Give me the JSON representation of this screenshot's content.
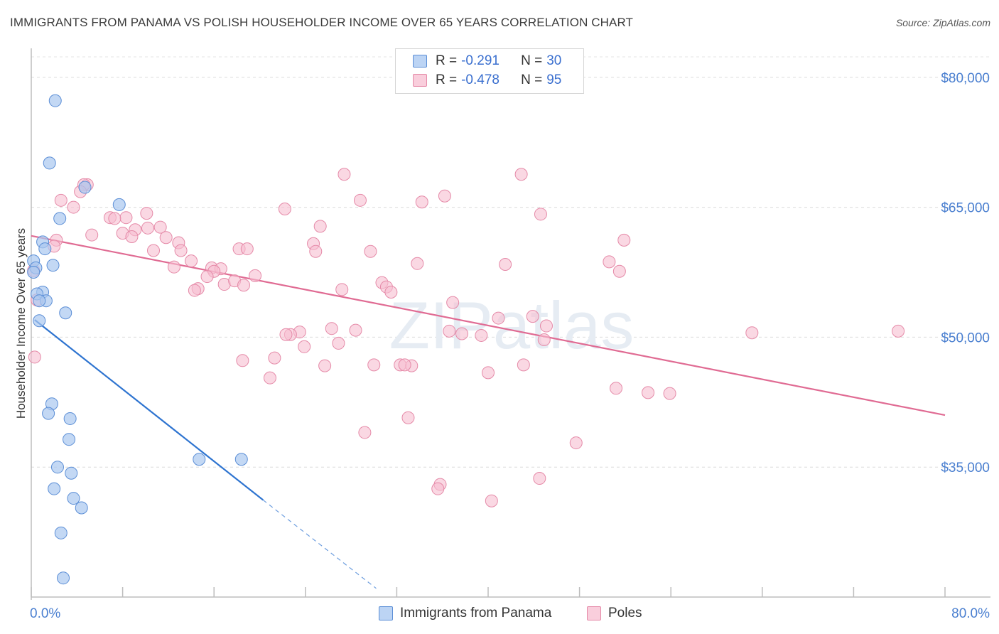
{
  "title": "IMMIGRANTS FROM PANAMA VS POLISH HOUSEHOLDER INCOME OVER 65 YEARS CORRELATION CHART",
  "source": "Source: ZipAtlas.com",
  "watermark": "ZIPatlas",
  "legend": {
    "row1": {
      "r_label": "R =",
      "r_value": "-0.291",
      "n_label": "N =",
      "n_value": "30"
    },
    "row2": {
      "r_label": "R =",
      "r_value": "-0.478",
      "n_label": "N =",
      "n_value": "95"
    }
  },
  "bottom_legend": {
    "s1": "Immigrants from Panama",
    "s2": "Poles"
  },
  "colors": {
    "blue_fill": "#a9c8f0",
    "blue_stroke": "#5b8ed6",
    "blue_line": "#2e74d0",
    "pink_fill": "#f7bed0",
    "pink_stroke": "#e58aa8",
    "pink_line": "#e06b93",
    "axis_text": "#4a7fd0"
  },
  "chart_data": {
    "type": "scatter",
    "title": "IMMIGRANTS FROM PANAMA VS POLISH HOUSEHOLDER INCOME OVER 65 YEARS CORRELATION CHART",
    "xlabel": "",
    "ylabel": "Householder Income Over 65 years",
    "xlim": [
      0,
      80
    ],
    "ylim": [
      20000,
      84000
    ],
    "x_tick_labels": [
      "0.0%",
      "80.0%"
    ],
    "y_ticks": [
      35000,
      50000,
      65000,
      80000
    ],
    "y_tick_labels": [
      "$35,000",
      "$50,000",
      "$65,000",
      "$80,000"
    ],
    "grid": true,
    "series": [
      {
        "name": "Immigrants from Panama",
        "color": "#a9c8f0",
        "points": [
          [
            2.1,
            77300
          ],
          [
            1.6,
            70100
          ],
          [
            4.7,
            67300
          ],
          [
            7.7,
            65300
          ],
          [
            2.5,
            63700
          ],
          [
            1.0,
            61000
          ],
          [
            1.2,
            60200
          ],
          [
            0.2,
            58800
          ],
          [
            0.4,
            58000
          ],
          [
            1.9,
            58300
          ],
          [
            0.2,
            57500
          ],
          [
            1.0,
            55200
          ],
          [
            0.5,
            55000
          ],
          [
            1.3,
            54200
          ],
          [
            0.7,
            54200
          ],
          [
            3.0,
            52800
          ],
          [
            0.7,
            51900
          ],
          [
            1.8,
            42300
          ],
          [
            1.5,
            41200
          ],
          [
            3.4,
            40600
          ],
          [
            3.3,
            38200
          ],
          [
            14.7,
            35900
          ],
          [
            18.4,
            35900
          ],
          [
            2.3,
            35000
          ],
          [
            3.5,
            34300
          ],
          [
            2.0,
            32500
          ],
          [
            3.7,
            31400
          ],
          [
            4.4,
            30300
          ],
          [
            2.6,
            27400
          ],
          [
            2.8,
            22200
          ]
        ],
        "trend": {
          "x0": 0.3,
          "y0": 52000,
          "x1": 20.3,
          "y1": 31200,
          "dashed_to_x": 30.2,
          "dashed_to_y": 21000
        }
      },
      {
        "name": "Poles",
        "color": "#f7bed0",
        "points": [
          [
            4.9,
            67600
          ],
          [
            4.6,
            67600
          ],
          [
            4.3,
            66800
          ],
          [
            2.6,
            65800
          ],
          [
            3.7,
            65000
          ],
          [
            6.9,
            63800
          ],
          [
            8.3,
            63800
          ],
          [
            7.3,
            63700
          ],
          [
            10.1,
            64300
          ],
          [
            9.1,
            62400
          ],
          [
            10.2,
            62600
          ],
          [
            11.3,
            62700
          ],
          [
            5.3,
            61800
          ],
          [
            8.0,
            62000
          ],
          [
            8.8,
            61600
          ],
          [
            11.8,
            61500
          ],
          [
            12.9,
            60900
          ],
          [
            2.2,
            61200
          ],
          [
            2.0,
            60500
          ],
          [
            10.7,
            60000
          ],
          [
            13.1,
            60000
          ],
          [
            14.0,
            58800
          ],
          [
            12.5,
            58100
          ],
          [
            15.8,
            58000
          ],
          [
            16.6,
            57900
          ],
          [
            16.0,
            57600
          ],
          [
            15.4,
            57000
          ],
          [
            16.9,
            56100
          ],
          [
            17.8,
            56500
          ],
          [
            14.6,
            55600
          ],
          [
            14.3,
            55400
          ],
          [
            18.2,
            60200
          ],
          [
            18.9,
            60200
          ],
          [
            18.6,
            56000
          ],
          [
            19.6,
            57100
          ],
          [
            0.2,
            57700
          ],
          [
            0.5,
            54300
          ],
          [
            0.3,
            47700
          ],
          [
            22.2,
            64800
          ],
          [
            25.3,
            62800
          ],
          [
            24.7,
            60800
          ],
          [
            24.9,
            59900
          ],
          [
            27.4,
            68800
          ],
          [
            28.8,
            65800
          ],
          [
            29.7,
            59900
          ],
          [
            30.7,
            56300
          ],
          [
            31.1,
            55800
          ],
          [
            31.5,
            55200
          ],
          [
            27.2,
            55500
          ],
          [
            34.2,
            65600
          ],
          [
            36.2,
            66300
          ],
          [
            33.8,
            58500
          ],
          [
            36.9,
            54000
          ],
          [
            40.9,
            52200
          ],
          [
            42.9,
            68800
          ],
          [
            44.6,
            64200
          ],
          [
            41.5,
            58400
          ],
          [
            43.9,
            52400
          ],
          [
            45.1,
            51300
          ],
          [
            44.9,
            49700
          ],
          [
            50.6,
            58700
          ],
          [
            51.5,
            57600
          ],
          [
            51.9,
            61200
          ],
          [
            63.1,
            50500
          ],
          [
            75.9,
            50700
          ],
          [
            23.5,
            50600
          ],
          [
            22.7,
            50300
          ],
          [
            22.3,
            50300
          ],
          [
            26.3,
            51000
          ],
          [
            28.4,
            50800
          ],
          [
            26.9,
            49300
          ],
          [
            23.9,
            48900
          ],
          [
            21.3,
            47600
          ],
          [
            18.5,
            47300
          ],
          [
            20.9,
            45300
          ],
          [
            25.7,
            46700
          ],
          [
            30.0,
            46800
          ],
          [
            32.3,
            46800
          ],
          [
            33.3,
            46700
          ],
          [
            37.7,
            50400
          ],
          [
            40.0,
            45900
          ],
          [
            43.1,
            46800
          ],
          [
            51.2,
            44100
          ],
          [
            54.0,
            43600
          ],
          [
            55.9,
            43500
          ],
          [
            33.0,
            40700
          ],
          [
            29.2,
            39000
          ],
          [
            47.7,
            37800
          ],
          [
            36.6,
            50700
          ],
          [
            44.5,
            33700
          ],
          [
            35.8,
            33000
          ],
          [
            35.6,
            32500
          ],
          [
            40.3,
            31100
          ],
          [
            39.4,
            50200
          ],
          [
            32.7,
            46800
          ]
        ],
        "trend": {
          "x0": 0,
          "y0": 61700,
          "x1": 80,
          "y1": 41000
        }
      }
    ]
  }
}
